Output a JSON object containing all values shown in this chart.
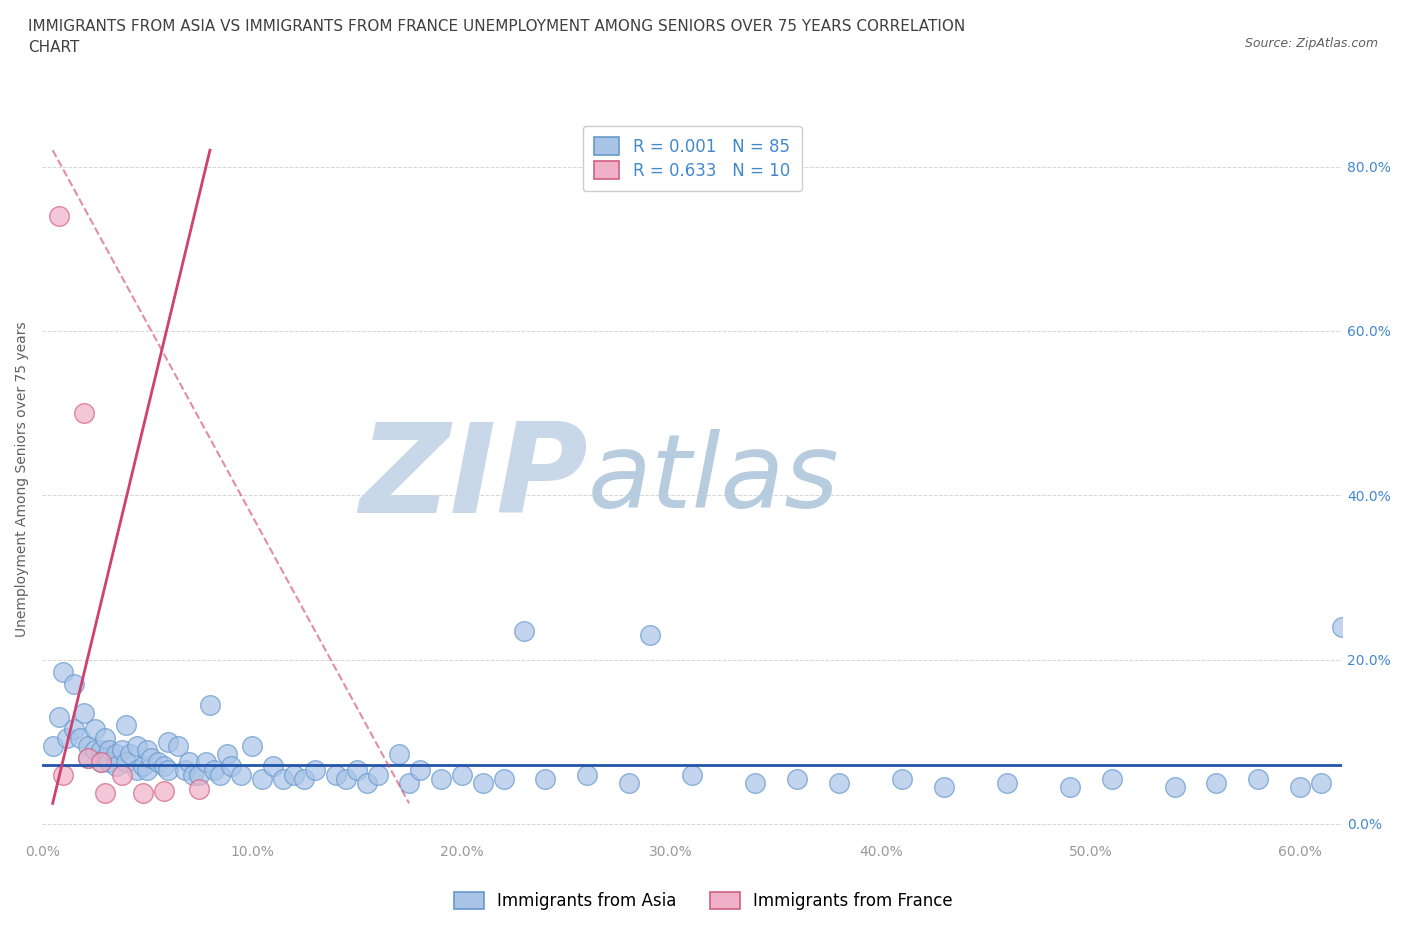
{
  "title": "IMMIGRANTS FROM ASIA VS IMMIGRANTS FROM FRANCE UNEMPLOYMENT AMONG SENIORS OVER 75 YEARS CORRELATION\nCHART",
  "source_text": "Source: ZipAtlas.com",
  "ylabel": "Unemployment Among Seniors over 75 years",
  "watermark_zip": "ZIP",
  "watermark_atlas": "atlas",
  "xlim": [
    0,
    0.62
  ],
  "ylim": [
    -0.02,
    0.86
  ],
  "xticks": [
    0.0,
    0.1,
    0.2,
    0.3,
    0.4,
    0.5,
    0.6
  ],
  "yticks": [
    0.0,
    0.2,
    0.4,
    0.6,
    0.8
  ],
  "xtick_labels": [
    "0.0%",
    "10.0%",
    "20.0%",
    "30.0%",
    "40.0%",
    "50.0%",
    "60.0%"
  ],
  "ytick_labels": [
    "0.0%",
    "20.0%",
    "40.0%",
    "60.0%",
    "80.0%"
  ],
  "legend_entry1": "Immigrants from Asia",
  "legend_entry2": "Immigrants from France",
  "R_asia": "0.001",
  "N_asia": "85",
  "R_france": "0.633",
  "N_france": "10",
  "color_asia": "#aac4e8",
  "color_france": "#f0b0c8",
  "color_asia_edge": "#6699cc",
  "color_france_edge": "#d06080",
  "trend_color_asia": "#2255aa",
  "trend_color_france": "#d04070",
  "asia_x": [
    0.005,
    0.008,
    0.01,
    0.012,
    0.015,
    0.015,
    0.018,
    0.02,
    0.022,
    0.022,
    0.025,
    0.025,
    0.028,
    0.028,
    0.03,
    0.03,
    0.032,
    0.032,
    0.035,
    0.035,
    0.038,
    0.04,
    0.04,
    0.042,
    0.045,
    0.045,
    0.048,
    0.05,
    0.05,
    0.052,
    0.055,
    0.058,
    0.06,
    0.06,
    0.065,
    0.068,
    0.07,
    0.072,
    0.075,
    0.078,
    0.08,
    0.082,
    0.085,
    0.088,
    0.09,
    0.095,
    0.1,
    0.105,
    0.11,
    0.115,
    0.12,
    0.125,
    0.13,
    0.14,
    0.145,
    0.15,
    0.155,
    0.16,
    0.17,
    0.175,
    0.18,
    0.19,
    0.2,
    0.21,
    0.22,
    0.23,
    0.24,
    0.26,
    0.28,
    0.29,
    0.31,
    0.34,
    0.36,
    0.38,
    0.41,
    0.43,
    0.46,
    0.49,
    0.51,
    0.54,
    0.56,
    0.58,
    0.6,
    0.61,
    0.62
  ],
  "asia_y": [
    0.095,
    0.13,
    0.185,
    0.105,
    0.17,
    0.115,
    0.105,
    0.135,
    0.095,
    0.08,
    0.115,
    0.09,
    0.09,
    0.075,
    0.105,
    0.08,
    0.09,
    0.075,
    0.085,
    0.07,
    0.09,
    0.12,
    0.075,
    0.085,
    0.095,
    0.065,
    0.07,
    0.09,
    0.065,
    0.08,
    0.075,
    0.07,
    0.1,
    0.065,
    0.095,
    0.065,
    0.075,
    0.06,
    0.06,
    0.075,
    0.145,
    0.065,
    0.06,
    0.085,
    0.07,
    0.06,
    0.095,
    0.055,
    0.07,
    0.055,
    0.06,
    0.055,
    0.065,
    0.06,
    0.055,
    0.065,
    0.05,
    0.06,
    0.085,
    0.05,
    0.065,
    0.055,
    0.06,
    0.05,
    0.055,
    0.235,
    0.055,
    0.06,
    0.05,
    0.23,
    0.06,
    0.05,
    0.055,
    0.05,
    0.055,
    0.045,
    0.05,
    0.045,
    0.055,
    0.045,
    0.05,
    0.055,
    0.045,
    0.05,
    0.24
  ],
  "france_x": [
    0.008,
    0.01,
    0.02,
    0.022,
    0.028,
    0.03,
    0.038,
    0.048,
    0.058,
    0.075
  ],
  "france_y": [
    0.74,
    0.06,
    0.5,
    0.08,
    0.075,
    0.038,
    0.06,
    0.038,
    0.04,
    0.042
  ],
  "trend_asia_x0": 0.0,
  "trend_asia_x1": 0.62,
  "trend_asia_y0": 0.072,
  "trend_asia_y1": 0.072,
  "trend_france_solid_x0": 0.005,
  "trend_france_solid_x1": 0.08,
  "trend_france_solid_y0": 0.025,
  "trend_france_solid_y1": 0.82,
  "trend_france_dash_x0": 0.005,
  "trend_france_dash_x1": 0.175,
  "trend_france_dash_y0": 0.82,
  "trend_france_dash_y1": 0.025,
  "background_color": "#ffffff",
  "grid_color": "#cccccc",
  "title_color": "#404040",
  "axis_label_color": "#606060",
  "tick_color": "#999999",
  "right_tick_color": "#4488cc",
  "watermark_zip_color": "#c8d8e8",
  "watermark_atlas_color": "#b8cce0",
  "title_fontsize": 11,
  "source_fontsize": 9,
  "legend_fontsize": 12,
  "axis_label_fontsize": 10,
  "tick_fontsize": 10
}
